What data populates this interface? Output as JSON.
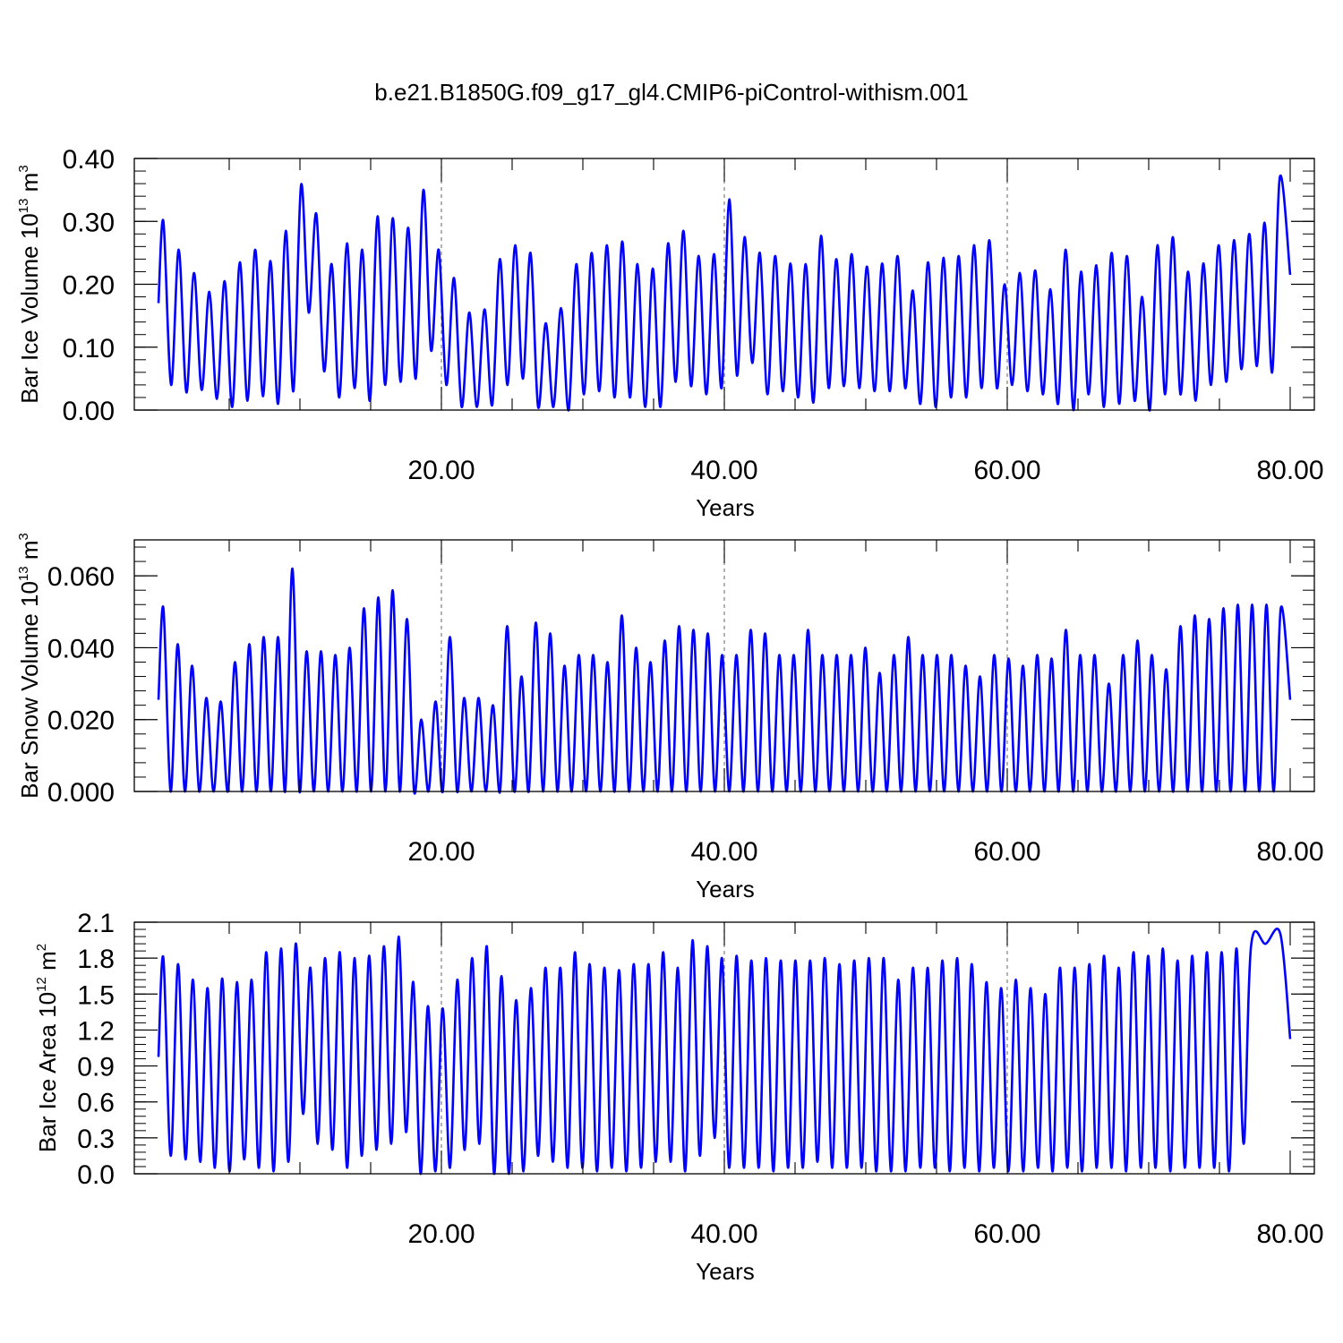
{
  "chart_data": [
    {
      "type": "line",
      "title": "b.e21.B1850G.f09_g17_gl4.CMIP6-piControl-withism.001",
      "ylabel": "Bar Ice Volume",
      "ylabel_units": "10 13 m 3",
      "xlabel": "Years",
      "xlim": [
        0,
        80
      ],
      "ylim": [
        0,
        0.4
      ],
      "xticks": [
        20,
        40,
        60,
        80
      ],
      "xtick_labels": [
        "20.00",
        "40.00",
        "60.00",
        "80.00"
      ],
      "yticks": [
        0,
        0.1,
        0.2,
        0.3,
        0.4
      ],
      "ytick_labels": [
        "0.00",
        "0.10",
        "0.20",
        "0.30",
        "0.40"
      ],
      "grid": "vertical dashed at major x ticks",
      "line_color": "#0000ff",
      "series": [
        {
          "peaks": [
            0.3,
            0.255,
            0.218,
            0.188,
            0.205,
            0.235,
            0.255,
            0.237,
            0.285,
            0.358,
            0.312,
            0.232,
            0.265,
            0.255,
            0.308,
            0.305,
            0.29,
            0.35,
            0.255,
            0.21,
            0.155,
            0.16,
            0.24,
            0.262,
            0.25,
            0.138,
            0.162,
            0.232,
            0.25,
            0.262,
            0.268,
            0.232,
            0.225,
            0.265,
            0.285,
            0.245,
            0.248,
            0.335,
            0.275,
            0.25,
            0.245,
            0.233,
            0.232,
            0.277,
            0.24,
            0.248,
            0.228,
            0.233,
            0.245,
            0.19,
            0.235,
            0.242,
            0.245,
            0.262,
            0.27,
            0.2,
            0.218,
            0.222,
            0.192,
            0.255,
            0.22,
            0.23,
            0.25,
            0.245,
            0.18,
            0.262,
            0.275,
            0.22,
            0.233,
            0.262,
            0.27,
            0.28,
            0.298,
            0.37
          ],
          "troughs": [
            0.04,
            0.028,
            0.032,
            0.018,
            0.005,
            0.015,
            0.022,
            0.01,
            0.03,
            0.155,
            0.062,
            0.02,
            0.035,
            0.015,
            0.04,
            0.045,
            0.05,
            0.095,
            0.04,
            0.005,
            0.005,
            0.008,
            0.04,
            0.05,
            0.005,
            0.005,
            0.0,
            0.025,
            0.03,
            0.02,
            0.02,
            0.005,
            0.005,
            0.045,
            0.038,
            0.025,
            0.035,
            0.055,
            0.075,
            0.025,
            0.03,
            0.02,
            0.012,
            0.035,
            0.038,
            0.035,
            0.03,
            0.03,
            0.035,
            0.01,
            0.005,
            0.02,
            0.02,
            0.035,
            0.035,
            0.04,
            0.03,
            0.025,
            0.01,
            0.0,
            0.025,
            0.005,
            0.01,
            0.015,
            0.0,
            0.025,
            0.025,
            0.015,
            0.04,
            0.045,
            0.065,
            0.07,
            0.06
          ]
        }
      ]
    },
    {
      "type": "line",
      "ylabel": "Bar Snow Volume",
      "ylabel_units": "10 13 m 3",
      "xlabel": "Years",
      "xlim": [
        0,
        80
      ],
      "ylim": [
        0,
        0.07
      ],
      "xticks": [
        20,
        40,
        60,
        80
      ],
      "xtick_labels": [
        "20.00",
        "40.00",
        "60.00",
        "80.00"
      ],
      "yticks": [
        0,
        0.02,
        0.04,
        0.06
      ],
      "ytick_labels": [
        "0.000",
        "0.020",
        "0.040",
        "0.060"
      ],
      "grid": "vertical dashed at major x ticks",
      "line_color": "#0000ff",
      "series": [
        {
          "peaks": [
            0.051,
            0.041,
            0.035,
            0.026,
            0.025,
            0.036,
            0.041,
            0.043,
            0.043,
            0.062,
            0.039,
            0.039,
            0.038,
            0.04,
            0.051,
            0.054,
            0.056,
            0.048,
            0.02,
            0.025,
            0.043,
            0.026,
            0.026,
            0.024,
            0.046,
            0.032,
            0.047,
            0.044,
            0.035,
            0.038,
            0.038,
            0.036,
            0.049,
            0.04,
            0.036,
            0.042,
            0.046,
            0.045,
            0.044,
            0.038,
            0.038,
            0.045,
            0.044,
            0.038,
            0.038,
            0.045,
            0.038,
            0.038,
            0.038,
            0.04,
            0.033,
            0.038,
            0.043,
            0.038,
            0.038,
            0.038,
            0.035,
            0.032,
            0.038,
            0.037,
            0.035,
            0.038,
            0.037,
            0.045,
            0.038,
            0.038,
            0.03,
            0.038,
            0.042,
            0.038,
            0.034,
            0.046,
            0.049,
            0.048,
            0.051,
            0.052,
            0.052,
            0.052,
            0.051
          ],
          "troughs": [
            0.0,
            0.0,
            0.0,
            0.0,
            0.0,
            0.0,
            0.0,
            0.0,
            0.0,
            0.0,
            0.0,
            0.0,
            0.0,
            0.0,
            0.0,
            0.0,
            0.0,
            0.0,
            0.0,
            0.0,
            0.0,
            0.0,
            0.0,
            0.0,
            0.0,
            0.0,
            0.0,
            0.0,
            0.0,
            0.0,
            0.0,
            0.0,
            0.0,
            0.0,
            0.0,
            0.0,
            0.0,
            0.0,
            0.0,
            0.0,
            0.0,
            0.0,
            0.0,
            0.0,
            0.0,
            0.0,
            0.0,
            0.0,
            0.0,
            0.0,
            0.0,
            0.0,
            0.0,
            0.0,
            0.0,
            0.0,
            0.0,
            0.0,
            0.0,
            0.0,
            0.0,
            0.0,
            0.0,
            0.0,
            0.0,
            0.0,
            0.0,
            0.0,
            0.0,
            0.0,
            0.0,
            0.0,
            0.0,
            0.0,
            0.0,
            0.0,
            0.0,
            0.0
          ]
        }
      ]
    },
    {
      "type": "line",
      "ylabel": "Bar Ice Area",
      "ylabel_units": "10 12 m 2",
      "xlabel": "Years",
      "xlim": [
        0,
        80
      ],
      "ylim": [
        0,
        2.1
      ],
      "xticks": [
        20,
        40,
        60,
        80
      ],
      "xtick_labels": [
        "20.00",
        "40.00",
        "60.00",
        "80.00"
      ],
      "yticks": [
        0,
        0.3,
        0.6,
        0.9,
        1.2,
        1.5,
        1.8,
        2.1
      ],
      "ytick_labels": [
        "0.0",
        "0.3",
        "0.6",
        "0.9",
        "1.2",
        "1.5",
        "1.8",
        "2.1"
      ],
      "grid": "vertical dashed at major x ticks",
      "line_color": "#0000ff",
      "series": [
        {
          "peaks": [
            1.8,
            1.75,
            1.62,
            1.55,
            1.63,
            1.6,
            1.62,
            1.85,
            1.88,
            1.92,
            1.72,
            1.8,
            1.85,
            1.8,
            1.82,
            1.9,
            1.98,
            1.6,
            1.4,
            1.38,
            1.62,
            1.8,
            1.9,
            1.65,
            1.45,
            1.55,
            1.72,
            1.72,
            1.85,
            1.75,
            1.72,
            1.7,
            1.75,
            1.75,
            1.85,
            1.72,
            1.95,
            1.9,
            1.8,
            1.82,
            1.78,
            1.8,
            1.78,
            1.78,
            1.78,
            1.8,
            1.75,
            1.78,
            1.8,
            1.8,
            1.62,
            1.72,
            1.72,
            1.78,
            1.8,
            1.75,
            1.6,
            1.55,
            1.62,
            1.55,
            1.5,
            1.72,
            1.72,
            1.75,
            1.82,
            1.72,
            1.85,
            1.82,
            1.88,
            1.78,
            1.82,
            1.85,
            1.85,
            1.88,
            1.9,
            1.92,
            2.0
          ],
          "troughs": [
            0.15,
            0.12,
            0.1,
            0.05,
            0.02,
            0.12,
            0.05,
            0.02,
            0.1,
            0.5,
            0.25,
            0.2,
            0.05,
            0.15,
            0.2,
            0.25,
            0.35,
            0.0,
            0.02,
            0.05,
            0.2,
            0.25,
            0.0,
            0.0,
            0.02,
            0.15,
            0.1,
            0.05,
            0.05,
            0.02,
            0.05,
            0.02,
            0.05,
            0.1,
            0.1,
            0.02,
            0.15,
            0.3,
            0.05,
            0.05,
            0.05,
            0.02,
            0.05,
            0.05,
            0.1,
            0.05,
            0.05,
            0.05,
            0.02,
            0.02,
            0.02,
            0.05,
            0.05,
            0.02,
            0.05,
            0.02,
            0.05,
            0.02,
            0.02,
            0.05,
            0.02,
            0.05,
            0.02,
            0.05,
            0.05,
            0.02,
            0.05,
            0.05,
            0.02,
            0.05,
            0.05,
            0.05,
            0.02,
            0.25
          ]
        }
      ]
    }
  ]
}
